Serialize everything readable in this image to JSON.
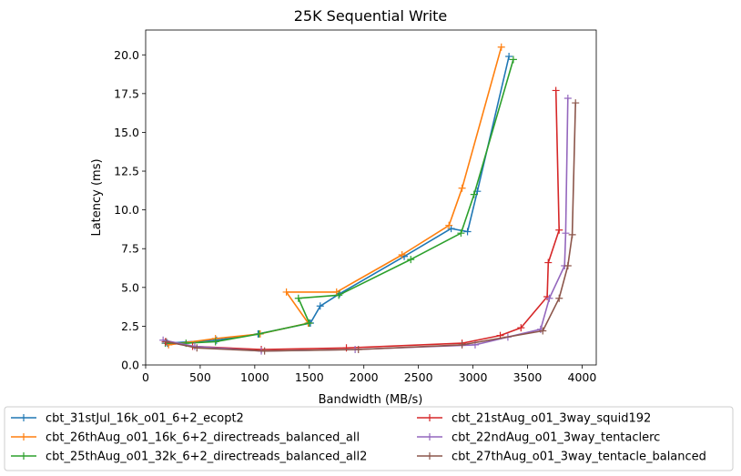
{
  "chart_data": {
    "type": "line",
    "title": "25K  Sequential Write",
    "xlabel": "Bandwidth (MB/s)",
    "ylabel": "Latency (ms)",
    "xlim": [
      0,
      4130
    ],
    "ylim": [
      0,
      21.6
    ],
    "xticks": [
      0,
      500,
      1000,
      1500,
      2000,
      2500,
      3000,
      3500,
      4000
    ],
    "yticks": [
      0.0,
      2.5,
      5.0,
      7.5,
      10.0,
      12.5,
      15.0,
      17.5,
      20.0
    ],
    "xtick_labels": [
      "0",
      "500",
      "1000",
      "1500",
      "2000",
      "2500",
      "3000",
      "3500",
      "4000"
    ],
    "ytick_labels": [
      "0.0",
      "2.5",
      "5.0",
      "7.5",
      "10.0",
      "12.5",
      "15.0",
      "17.5",
      "20.0"
    ],
    "grid": false,
    "legend_position": "bottom, outside plot, 2 columns",
    "series": [
      {
        "name": "cbt_31stJul_16k_o01_6+2_ecopt2",
        "color": "#1f77b4",
        "x": [
          200,
          650,
          1030,
          1510,
          1600,
          1780,
          2370,
          2800,
          2950,
          3040,
          3330
        ],
        "y": [
          1.4,
          1.6,
          2.0,
          2.7,
          3.8,
          4.6,
          7.0,
          8.8,
          8.6,
          11.2,
          19.9
        ]
      },
      {
        "name": "cbt_26thAug_o01_16k_6+2_directreads_balanced_all",
        "color": "#ff7f0e",
        "x": [
          210,
          640,
          1050,
          1490,
          1290,
          1750,
          2350,
          2780,
          2900,
          3260
        ],
        "y": [
          1.3,
          1.7,
          2.0,
          2.7,
          4.7,
          4.7,
          7.1,
          9.0,
          11.4,
          20.5
        ]
      },
      {
        "name": "cbt_25thAug_o01_32k_6+2_directreads_balanced_all2",
        "color": "#2ca02c",
        "x": [
          180,
          370,
          640,
          1040,
          1500,
          1400,
          1770,
          2430,
          2890,
          3010,
          3370
        ],
        "y": [
          1.4,
          1.4,
          1.5,
          2.0,
          2.7,
          4.3,
          4.5,
          6.8,
          8.5,
          11.0,
          19.7
        ]
      },
      {
        "name": "cbt_21stAug_o01_3way_squid192",
        "color": "#d62728",
        "x": [
          180,
          430,
          1060,
          1840,
          2900,
          3250,
          3440,
          3680,
          3690,
          3790,
          3760
        ],
        "y": [
          1.5,
          1.2,
          1.0,
          1.1,
          1.4,
          1.9,
          2.4,
          4.4,
          6.6,
          8.7,
          17.7
        ]
      },
      {
        "name": "cbt_22ndAug_o01_3way_tentaclerc",
        "color": "#9467bd",
        "x": [
          160,
          450,
          1060,
          1920,
          3020,
          3320,
          3620,
          3700,
          3840,
          3850,
          3870
        ],
        "y": [
          1.6,
          1.2,
          0.9,
          1.0,
          1.3,
          1.8,
          2.3,
          4.3,
          6.4,
          8.5,
          17.2
        ]
      },
      {
        "name": "cbt_27thAug_o01_3way_tentacle_balanced",
        "color": "#8c564b",
        "x": [
          190,
          470,
          1090,
          1950,
          2900,
          3640,
          3790,
          3870,
          3910,
          3940
        ],
        "y": [
          1.5,
          1.1,
          0.9,
          1.0,
          1.3,
          2.2,
          4.3,
          6.4,
          8.4,
          16.9
        ]
      }
    ]
  }
}
